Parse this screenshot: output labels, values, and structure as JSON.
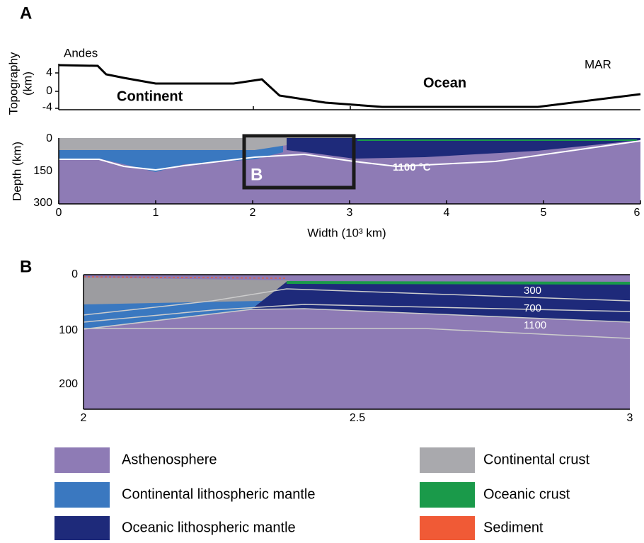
{
  "panel_a": {
    "label": "A",
    "topography": {
      "y_label": [
        "Topography",
        "(km)"
      ],
      "yticks": [
        "4",
        "0",
        "-4"
      ],
      "annotations": [
        "Andes",
        "Continent",
        "Ocean",
        "MAR"
      ]
    },
    "depth": {
      "y_label": "Depth (km)",
      "yticks": [
        "0",
        "150",
        "300"
      ],
      "xticks": [
        "0",
        "1",
        "2",
        "3",
        "4",
        "5",
        "6"
      ],
      "x_label": "Width (10³ km)",
      "inset_label": "B",
      "isotherm_label": "1100 °C"
    }
  },
  "panel_b": {
    "label": "B",
    "yticks": [
      "0",
      "100",
      "200"
    ],
    "xticks": [
      "2",
      "2.5",
      "3"
    ],
    "isotherm_labels": [
      "300",
      "700",
      "1100"
    ]
  },
  "legend": [
    "Asthenosphere",
    "Continental lithospheric mantle",
    "Oceanic lithospheric mantle",
    "Continental crust",
    "Oceanic crust",
    "Sediment"
  ]
}
